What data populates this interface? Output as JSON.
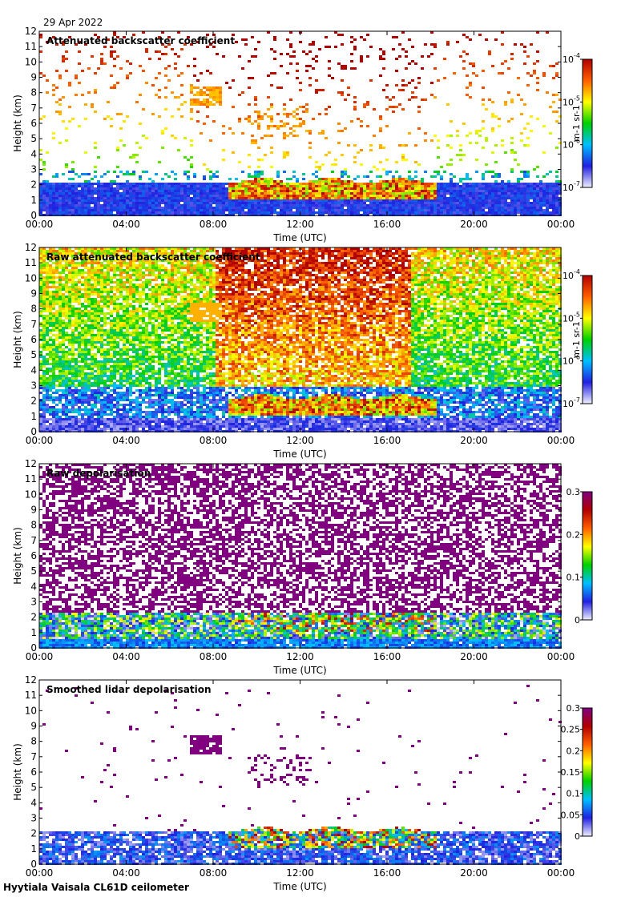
{
  "date": "29 Apr 2022",
  "footer": "Hyytiala Vaisala CL61D ceilometer",
  "chart_data": [
    {
      "type": "heatmap",
      "title": "Attenuated backscatter coefficient",
      "xlabel": "Time (UTC)",
      "ylabel": "Height (km)",
      "xticks": [
        "00:00",
        "04:00",
        "08:00",
        "12:00",
        "16:00",
        "20:00",
        "00:00"
      ],
      "yticks": [
        "0",
        "1",
        "2",
        "3",
        "4",
        "5",
        "6",
        "7",
        "8",
        "9",
        "10",
        "11",
        "12"
      ],
      "ylim": [
        0,
        12
      ],
      "colorbar": {
        "scale": "log",
        "ticks": [
          [
            "10",
            "-7"
          ],
          [
            "10",
            "-6"
          ],
          [
            "10",
            "-5"
          ],
          [
            "10",
            "-4"
          ]
        ],
        "unit": "m-1 sr-1"
      },
      "colors": [
        "#f0f0ff",
        "#2020e0",
        "#00c0ff",
        "#00d000",
        "#ffff00",
        "#ff6000",
        "#b00000"
      ],
      "features": [
        {
          "name": "boundary layer aerosol",
          "start_h": 0,
          "end_h": 24,
          "bottom_km": 0,
          "top_km": 2.3,
          "intensity": 0.12
        },
        {
          "name": "cloud layer",
          "start_h": 8.7,
          "end_h": 18.2,
          "bottom_km": 1.1,
          "top_km": 2.4,
          "intensity": 0.75
        },
        {
          "name": "elevated aerosol",
          "start_h": 6.8,
          "end_h": 8.2,
          "bottom_km": 7.2,
          "top_km": 8.4,
          "intensity": 0.8
        }
      ]
    },
    {
      "type": "heatmap",
      "title": "Raw attenuated backscatter coefficient",
      "xlabel": "Time (UTC)",
      "ylabel": "Height (km)",
      "xticks": [
        "00:00",
        "04:00",
        "08:00",
        "12:00",
        "16:00",
        "20:00",
        "00:00"
      ],
      "yticks": [
        "0",
        "1",
        "2",
        "3",
        "4",
        "5",
        "6",
        "7",
        "8",
        "9",
        "10",
        "11",
        "12"
      ],
      "ylim": [
        0,
        12
      ],
      "colorbar": {
        "scale": "log",
        "ticks": [
          [
            "10",
            "-7"
          ],
          [
            "10",
            "-6"
          ],
          [
            "10",
            "-5"
          ],
          [
            "10",
            "-4"
          ]
        ],
        "unit": "m-1 sr-1"
      },
      "colors": [
        "#f0f0ff",
        "#2020e0",
        "#00c0ff",
        "#00d000",
        "#ffff00",
        "#ff6000",
        "#b00000"
      ],
      "features": [
        {
          "name": "noise field",
          "start_h": 0,
          "end_h": 24,
          "bottom_km": 0,
          "top_km": 12,
          "intensity": 0.3
        },
        {
          "name": "cloud layer",
          "start_h": 8.7,
          "end_h": 18.2,
          "bottom_km": 1.1,
          "top_km": 2.4,
          "intensity": 0.8
        }
      ]
    },
    {
      "type": "heatmap",
      "title": "Raw depolarisation",
      "xlabel": "Time (UTC)",
      "ylabel": "Height (km)",
      "xticks": [
        "00:00",
        "04:00",
        "08:00",
        "12:00",
        "16:00",
        "20:00",
        "00:00"
      ],
      "yticks": [
        "0",
        "1",
        "2",
        "3",
        "4",
        "5",
        "6",
        "7",
        "8",
        "9",
        "10",
        "11",
        "12"
      ],
      "ylim": [
        0,
        12
      ],
      "colorbar": {
        "scale": "linear",
        "ticks": [
          "0",
          "0.1",
          "0.2",
          "0.3"
        ],
        "unit": ""
      },
      "colors": [
        "#f0f0ff",
        "#2020e0",
        "#00c0ff",
        "#00d000",
        "#ffff00",
        "#ff6000",
        "#b00000",
        "#800080"
      ],
      "features": [
        {
          "name": "noise field",
          "start_h": 0,
          "end_h": 24,
          "bottom_km": 2.5,
          "top_km": 12,
          "value": 0.3
        },
        {
          "name": "boundary layer",
          "start_h": 0,
          "end_h": 24,
          "bottom_km": 0,
          "top_km": 2.3,
          "value": 0.08
        }
      ]
    },
    {
      "type": "heatmap",
      "title": "Smoothed lidar depolarisation",
      "xlabel": "Time (UTC)",
      "ylabel": "Height (km)",
      "xticks": [
        "00:00",
        "04:00",
        "08:00",
        "12:00",
        "16:00",
        "20:00",
        "00:00"
      ],
      "yticks": [
        "0",
        "1",
        "2",
        "3",
        "4",
        "5",
        "6",
        "7",
        "8",
        "9",
        "10",
        "11",
        "12"
      ],
      "ylim": [
        0,
        12
      ],
      "colorbar": {
        "scale": "linear",
        "ticks": [
          "0",
          "0.05",
          "0.1",
          "0.15",
          "0.2",
          "0.25",
          "0.3"
        ],
        "unit": ""
      },
      "colors": [
        "#f0f0ff",
        "#2020e0",
        "#00c0ff",
        "#00d000",
        "#ffff00",
        "#ff6000",
        "#b00000",
        "#800080"
      ],
      "features": [
        {
          "name": "boundary layer",
          "start_h": 0,
          "end_h": 24,
          "bottom_km": 0,
          "top_km": 2.2,
          "value": 0.05
        },
        {
          "name": "cloud layer",
          "start_h": 9,
          "end_h": 17.5,
          "bottom_km": 0.8,
          "top_km": 2.4,
          "value": 0.18
        },
        {
          "name": "elevated aerosol",
          "start_h": 6.8,
          "end_h": 8.2,
          "bottom_km": 7.2,
          "top_km": 8.4,
          "value": 0.3
        }
      ]
    }
  ]
}
